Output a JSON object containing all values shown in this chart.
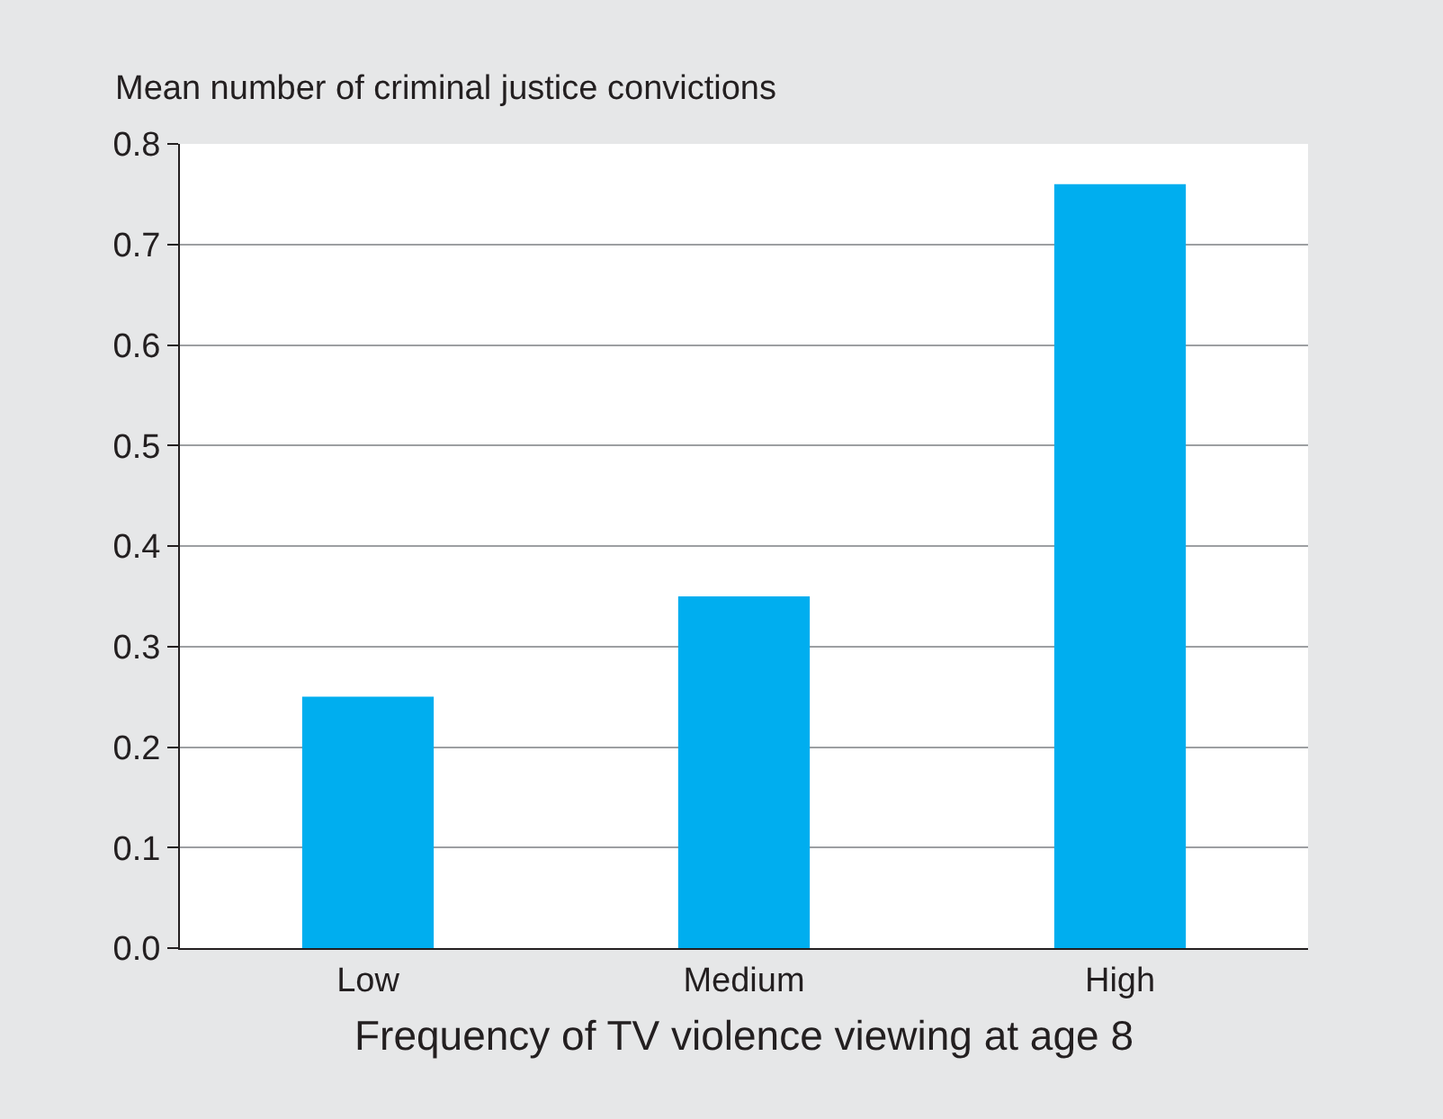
{
  "chart_data": {
    "type": "bar",
    "ylabel": "Mean number of criminal justice convictions",
    "xlabel": "Frequency of TV violence viewing at age 8",
    "categories": [
      "Low",
      "Medium",
      "High"
    ],
    "values": [
      0.25,
      0.35,
      0.76
    ],
    "color": "#00aeef",
    "ylim": [
      0,
      0.8
    ],
    "yticks": [
      {
        "value": 0,
        "label": "0.0"
      },
      0.1,
      0.2,
      0.3,
      0.4,
      0.5,
      0.6,
      0.7,
      0.8
    ],
    "grid": "y",
    "legend": false
  }
}
